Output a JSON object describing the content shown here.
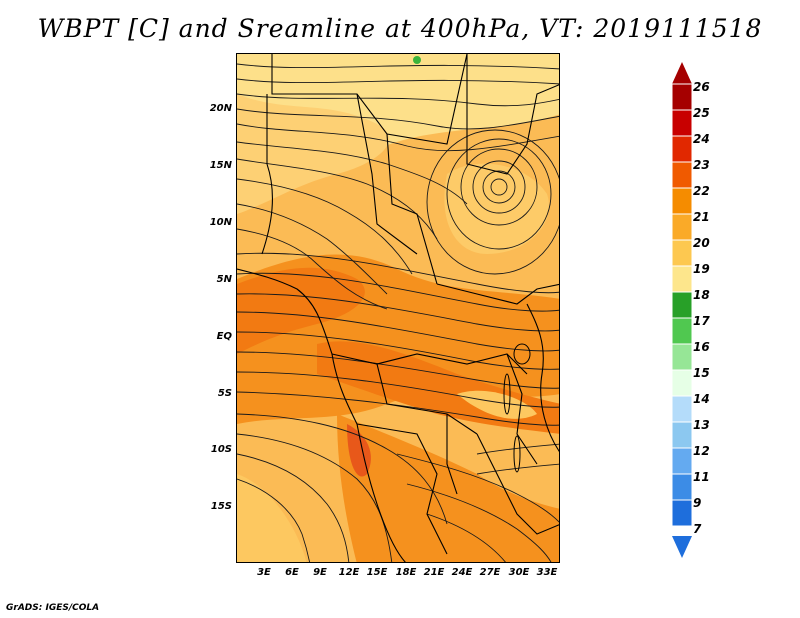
{
  "title": "WBPT [C] and Sreamline at 400hPa, VT: 2019111518",
  "footer": "GrADS: IGES/COLA",
  "map": {
    "region": "Southern/Central Africa",
    "lat_labels": [
      "20N",
      "15N",
      "10N",
      "5N",
      "EQ",
      "5S",
      "10S",
      "15S"
    ],
    "lon_labels": [
      "3E",
      "6E",
      "9E",
      "12E",
      "15E",
      "18E",
      "21E",
      "24E",
      "27E",
      "30E",
      "33E"
    ],
    "cyclone_center": "near 13N 29E"
  },
  "colorbar": {
    "labels": [
      "26",
      "25",
      "24",
      "23",
      "22",
      "21",
      "20",
      "19",
      "18",
      "17",
      "16",
      "15",
      "14",
      "13",
      "12",
      "11",
      "9",
      "7"
    ],
    "colors": [
      "#a50000",
      "#c80000",
      "#e12800",
      "#f05a00",
      "#f58c00",
      "#faaa28",
      "#fdc850",
      "#fde68c",
      "#28a028",
      "#50c850",
      "#96e696",
      "#e6ffe6",
      "#b4dcfa",
      "#8cc8f0",
      "#64aaf0",
      "#3c8ce6",
      "#1e6edc"
    ]
  }
}
